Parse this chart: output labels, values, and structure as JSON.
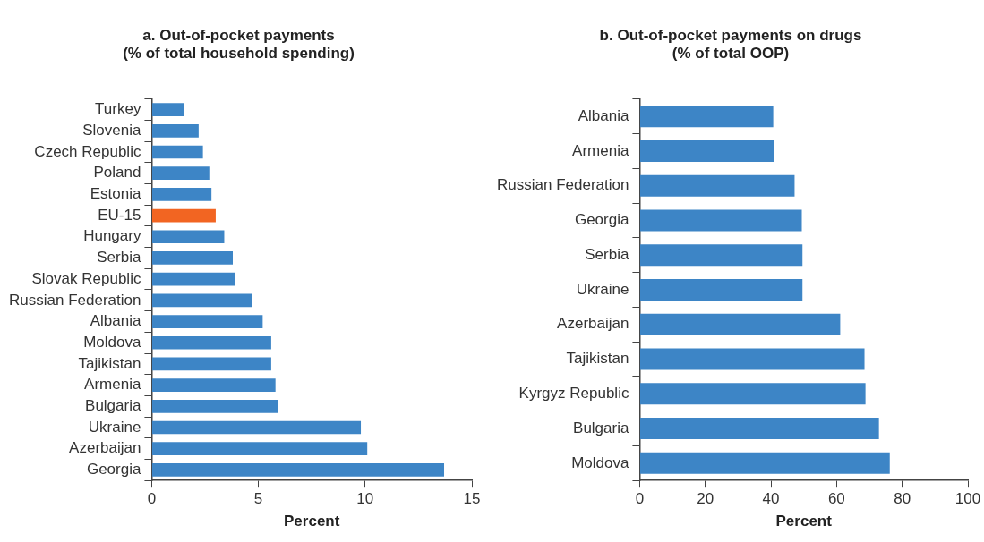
{
  "chart_data": [
    {
      "type": "bar",
      "orientation": "horizontal",
      "title": "a. Out-of-pocket payments\n(% of total household spending)",
      "xlabel": "Percent",
      "categories": [
        "Turkey",
        "Slovenia",
        "Czech Republic",
        "Poland",
        "Estonia",
        "EU-15",
        "Hungary",
        "Serbia",
        "Slovak Republic",
        "Russian Federation",
        "Albania",
        "Moldova",
        "Tajikistan",
        "Armenia",
        "Bulgaria",
        "Ukraine",
        "Azerbaijan",
        "Georgia"
      ],
      "values": [
        1.5,
        2.2,
        2.4,
        2.7,
        2.8,
        3.0,
        3.4,
        3.8,
        3.9,
        4.7,
        5.2,
        5.6,
        5.6,
        5.8,
        5.9,
        9.8,
        10.1,
        13.7
      ],
      "colors": [
        "#3d85c6",
        "#3d85c6",
        "#3d85c6",
        "#3d85c6",
        "#3d85c6",
        "#f26522",
        "#3d85c6",
        "#3d85c6",
        "#3d85c6",
        "#3d85c6",
        "#3d85c6",
        "#3d85c6",
        "#3d85c6",
        "#3d85c6",
        "#3d85c6",
        "#3d85c6",
        "#3d85c6",
        "#3d85c6"
      ],
      "xlim": [
        0,
        15
      ],
      "xticks": [
        0,
        5,
        10,
        15
      ],
      "grid": false,
      "legend": false
    },
    {
      "type": "bar",
      "orientation": "horizontal",
      "title": "b. Out-of-pocket payments on drugs\n(% of total OOP)",
      "xlabel": "Percent",
      "categories": [
        "Albania",
        "Armenia",
        "Russian Federation",
        "Georgia",
        "Serbia",
        "Ukraine",
        "Azerbaijan",
        "Tajikistan",
        "Kyrgyz Republic",
        "Bulgaria",
        "Moldova"
      ],
      "values": [
        40.7,
        40.9,
        47.2,
        49.4,
        49.6,
        49.6,
        61.1,
        68.5,
        68.8,
        72.9,
        76.2
      ],
      "color": "#3d85c6",
      "xlim": [
        0,
        100
      ],
      "xticks": [
        0,
        20,
        40,
        60,
        80,
        100
      ],
      "grid": false,
      "legend": false
    }
  ]
}
